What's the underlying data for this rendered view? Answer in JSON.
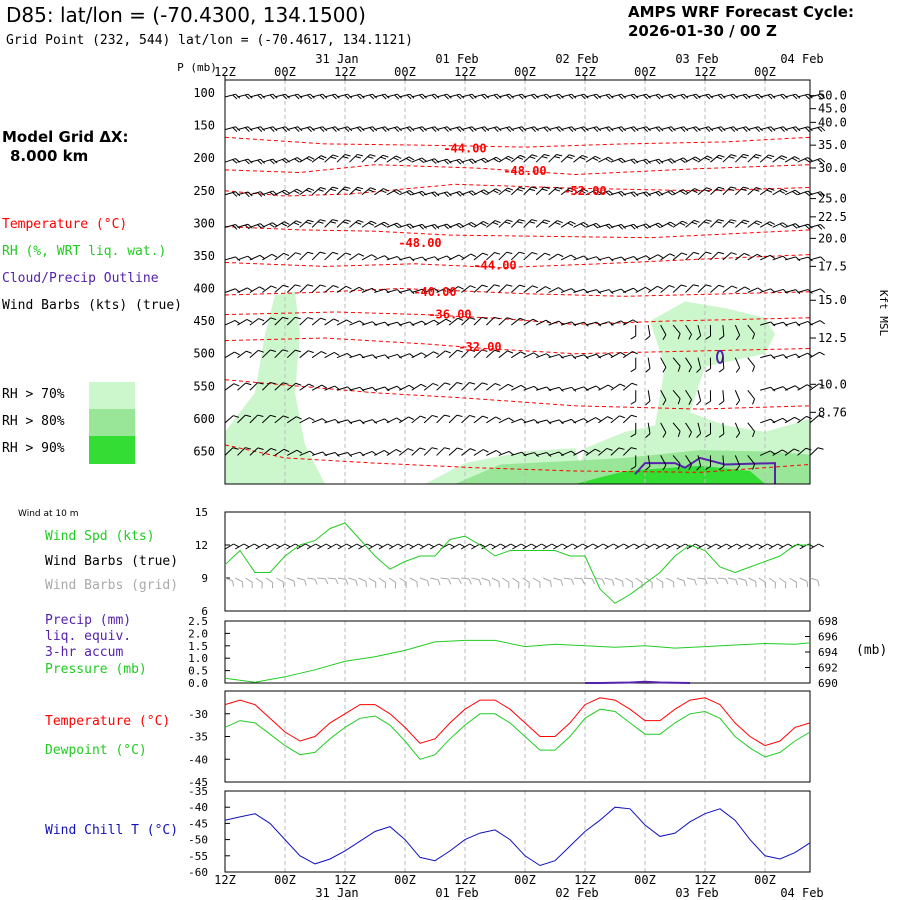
{
  "header": {
    "title": "D85:  lat/lon = (-70.4300, 134.1500)",
    "subtitle": "Grid Point (232, 544) lat/lon = (-70.4617, 134.1121)",
    "cycle_line1": "AMPS WRF Forecast Cycle:",
    "cycle_line2": "2026-01-30 / 00  Z"
  },
  "grid": {
    "line1": "Model Grid ΔX:",
    "line2": "8.000 km"
  },
  "legend": {
    "temperature": "Temperature (°C)",
    "rh": "RH (%, WRT liq. wat.)",
    "cloud": "Cloud/Precip Outline",
    "wind": "Wind Barbs (kts) (true)",
    "rh_levels": [
      {
        "label": "RH > 70%",
        "color": "#ccf7cc"
      },
      {
        "label": "RH > 80%",
        "color": "#99e699"
      },
      {
        "label": "RH > 90%",
        "color": "#33dd33"
      }
    ]
  },
  "wind10_title": "Wind at 10 m",
  "panel_labels": {
    "wspd": "Wind Spd (kts)",
    "wbarbs_true": "Wind Barbs (true)",
    "wbarbs_grid": "Wind Barbs (grid)",
    "precip1": "Precip (mm)",
    "precip2": "liq. equiv.",
    "precip3": "3-hr accum",
    "pressure": "Pressure (mb)",
    "pressure_unit": "(mb)",
    "temperature": "Temperature (°C)",
    "dewpoint": "Dewpoint (°C)",
    "windchill": "Wind Chill T (°C)"
  },
  "colors": {
    "temperature": "#ff0000",
    "dewpoint": "#22cc22",
    "windspeed": "#22cc22",
    "pressure": "#22cc22",
    "precip": "#5522aa",
    "windchill": "#1111bb",
    "barb_true": "#000000",
    "barb_grid": "#aaaaaa"
  },
  "chart_data": [
    {
      "type": "heatmap",
      "name": "cross-section",
      "ylabel": "P (mb)",
      "ylabel_right": "Kft MSL",
      "time_hours_ticks": [
        0,
        12,
        24,
        36,
        48,
        60,
        72,
        84,
        96,
        108
      ],
      "time_range_hours": [
        0,
        117
      ],
      "time_ticks_top": [
        "12Z",
        "00Z",
        "12Z",
        "00Z",
        "12Z",
        "00Z",
        "12Z",
        "00Z",
        "12Z",
        "00Z"
      ],
      "date_labels": [
        {
          "hour": 24,
          "label": "31 Jan"
        },
        {
          "hour": 48,
          "label": "01 Feb"
        },
        {
          "hour": 72,
          "label": "02 Feb"
        },
        {
          "hour": 96,
          "label": "03 Feb"
        },
        {
          "hour": 117,
          "label": "04 Feb"
        }
      ],
      "pressure_ticks": [
        100,
        150,
        200,
        250,
        300,
        350,
        400,
        450,
        500,
        550,
        600,
        650
      ],
      "height_kft_ticks": [
        50.0,
        45.0,
        40.0,
        35.0,
        30.0,
        25.0,
        22.5,
        20.0,
        17.5,
        15.0,
        12.5,
        10.0,
        8.76
      ],
      "height_kft_pressure": [
        104,
        124,
        145,
        180,
        215,
        262,
        290,
        323,
        366,
        418,
        476,
        547,
        590
      ],
      "isotherm_labels": [
        {
          "label": "-44.00",
          "hour": 48,
          "p": 185
        },
        {
          "label": "-48.00",
          "hour": 60,
          "p": 220
        },
        {
          "label": "-52.00",
          "hour": 72,
          "p": 250
        },
        {
          "label": "-48.00",
          "hour": 39,
          "p": 330
        },
        {
          "label": "-44.00",
          "hour": 54,
          "p": 365
        },
        {
          "label": "-40.00",
          "hour": 42,
          "p": 405
        },
        {
          "label": "-36.00",
          "hour": 45,
          "p": 440
        },
        {
          "label": "-32.00",
          "hour": 51,
          "p": 490
        }
      ]
    },
    {
      "type": "line",
      "name": "wind-speed",
      "ylabel": "Wind Spd (kts)",
      "ylim": [
        6,
        15
      ],
      "yticks": [
        6,
        9,
        12,
        15
      ],
      "x_hours": [
        0,
        3,
        6,
        9,
        12,
        15,
        18,
        21,
        24,
        27,
        30,
        33,
        36,
        39,
        42,
        45,
        48,
        51,
        54,
        57,
        60,
        63,
        66,
        69,
        72,
        75,
        78,
        81,
        84,
        87,
        90,
        93,
        96,
        99,
        102,
        105,
        108,
        111,
        114,
        117
      ],
      "values": [
        10.2,
        11.5,
        9.5,
        9.5,
        11.0,
        12.0,
        12.4,
        13.5,
        14.0,
        12.5,
        11.0,
        9.8,
        10.5,
        11.0,
        11.0,
        12.5,
        12.8,
        12.0,
        11.0,
        11.5,
        11.5,
        11.5,
        11.5,
        11.0,
        11.0,
        8.0,
        6.7,
        7.5,
        8.5,
        9.5,
        11.0,
        12.0,
        11.5,
        10.0,
        9.5,
        10.0,
        10.5,
        11.0,
        12.0,
        12.0
      ]
    },
    {
      "type": "line",
      "name": "pressure-precip",
      "ylabel": "Precip (mm)",
      "ylabel_right": "Pressure (mb)",
      "ylim_left": [
        0.0,
        2.5
      ],
      "yticks_left": [
        0.0,
        0.5,
        1.0,
        1.5,
        2.0,
        2.5
      ],
      "ylim_right": [
        690,
        698
      ],
      "yticks_right": [
        690,
        692,
        694,
        696,
        698
      ],
      "series": [
        {
          "name": "Pressure (mb)",
          "axis": "right",
          "x_hours": [
            0,
            6,
            12,
            18,
            24,
            30,
            36,
            42,
            48,
            54,
            60,
            66,
            72,
            78,
            84,
            90,
            96,
            102,
            108,
            114,
            117
          ],
          "values": [
            690.6,
            690.1,
            690.8,
            691.7,
            692.8,
            693.4,
            694.2,
            695.3,
            695.5,
            695.5,
            694.7,
            695.0,
            694.8,
            694.6,
            694.8,
            694.5,
            694.7,
            694.9,
            695.1,
            695.0,
            695.2
          ]
        },
        {
          "name": "Precip (mm)",
          "axis": "left",
          "x_hours": [
            72,
            75,
            78,
            81,
            84,
            87,
            90,
            93
          ],
          "values": [
            0.0,
            0.0,
            0.01,
            0.02,
            0.05,
            0.02,
            0.01,
            0.0
          ]
        }
      ]
    },
    {
      "type": "line",
      "name": "temperature-dewpoint",
      "ylim": [
        -45,
        -25
      ],
      "yticks": [
        -45,
        -40,
        -35,
        -30
      ],
      "x_hours": [
        0,
        3,
        6,
        9,
        12,
        15,
        18,
        21,
        24,
        27,
        30,
        33,
        36,
        39,
        42,
        45,
        48,
        51,
        54,
        57,
        60,
        63,
        66,
        69,
        72,
        75,
        78,
        81,
        84,
        87,
        90,
        93,
        96,
        99,
        102,
        105,
        108,
        111,
        114,
        117
      ],
      "series": [
        {
          "name": "Temperature (°C)",
          "values": [
            -28.0,
            -27.0,
            -28.0,
            -31.0,
            -34.0,
            -36.0,
            -35.0,
            -32.0,
            -30.0,
            -28.0,
            -28.0,
            -30.0,
            -33.0,
            -36.5,
            -35.5,
            -32.0,
            -29.0,
            -27.0,
            -27.0,
            -29.0,
            -32.0,
            -35.0,
            -35.0,
            -32.0,
            -28.0,
            -26.5,
            -27.0,
            -29.0,
            -31.5,
            -31.5,
            -29.0,
            -27.0,
            -26.5,
            -28.0,
            -32.0,
            -35.0,
            -37.0,
            -36.0,
            -33.0,
            -32.0
          ]
        },
        {
          "name": "Dewpoint (°C)",
          "values": [
            -33.0,
            -31.5,
            -32.0,
            -34.5,
            -37.0,
            -39.0,
            -38.5,
            -35.5,
            -33.0,
            -31.0,
            -30.5,
            -32.5,
            -36.0,
            -40.0,
            -39.0,
            -35.5,
            -32.5,
            -30.0,
            -30.0,
            -32.0,
            -35.0,
            -38.0,
            -38.0,
            -35.0,
            -31.0,
            -29.0,
            -29.5,
            -32.0,
            -34.5,
            -34.5,
            -32.0,
            -30.0,
            -29.5,
            -31.0,
            -35.0,
            -37.5,
            -39.5,
            -38.5,
            -36.0,
            -34.0
          ]
        }
      ]
    },
    {
      "type": "line",
      "name": "wind-chill",
      "ylabel": "Wind Chill T (°C)",
      "ylim": [
        -60,
        -35
      ],
      "yticks": [
        -60,
        -55,
        -50,
        -45,
        -40,
        -35
      ],
      "time_ticks_bottom": [
        "12Z",
        "00Z",
        "12Z",
        "00Z",
        "12Z",
        "00Z",
        "12Z",
        "00Z",
        "12Z",
        "00Z"
      ],
      "x_hours": [
        0,
        3,
        6,
        9,
        12,
        15,
        18,
        21,
        24,
        27,
        30,
        33,
        36,
        39,
        42,
        45,
        48,
        51,
        54,
        57,
        60,
        63,
        66,
        69,
        72,
        75,
        78,
        81,
        84,
        87,
        90,
        93,
        96,
        99,
        102,
        105,
        108,
        111,
        114,
        117
      ],
      "values": [
        -44.0,
        -43.0,
        -42.0,
        -45.0,
        -50.0,
        -55.0,
        -57.5,
        -56.0,
        -53.5,
        -50.5,
        -47.5,
        -46.0,
        -50.0,
        -55.5,
        -56.5,
        -53.5,
        -50.0,
        -48.0,
        -47.0,
        -50.0,
        -55.0,
        -58.0,
        -56.5,
        -52.0,
        -47.5,
        -44.0,
        -40.0,
        -40.5,
        -45.5,
        -49.0,
        -48.0,
        -44.5,
        -42.0,
        -40.5,
        -44.0,
        -50.0,
        -55.0,
        -56.0,
        -54.0,
        -51.0
      ]
    }
  ]
}
